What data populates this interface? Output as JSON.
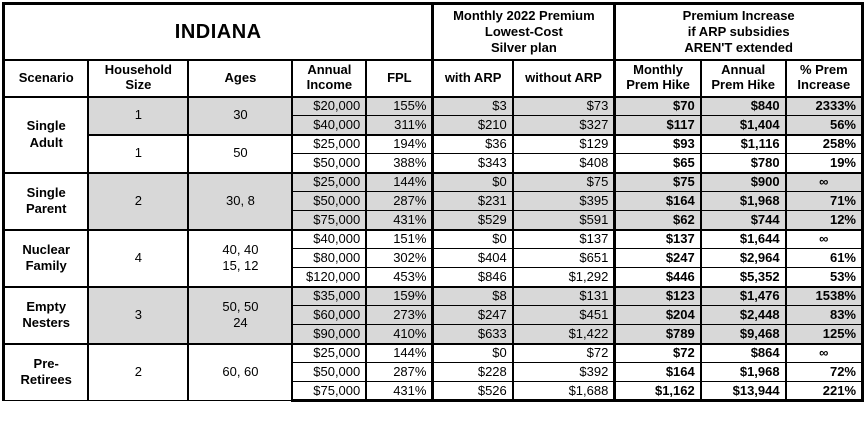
{
  "title": "INDIANA",
  "colors": {
    "shaded_row": "#d8d8d8",
    "grid": "#000000",
    "background": "#ffffff",
    "text": "#000000"
  },
  "header": {
    "premium_group": "Monthly 2022 Premium\nLowest-Cost\nSilver plan",
    "increase_group": "Premium Increase\nif ARP subsidies\nAREN'T extended",
    "columns": {
      "scenario": "Scenario",
      "household": "Household\nSize",
      "ages": "Ages",
      "income": "Annual\nIncome",
      "fpl": "FPL",
      "with_arp": "with ARP",
      "without_arp": "without ARP",
      "monthly_hike": "Monthly\nPrem Hike",
      "annual_hike": "Annual\nPrem Hike",
      "pct_increase": "% Prem\nIncrease"
    }
  },
  "chart_data": {
    "type": "table",
    "title": "INDIANA",
    "column_headers": [
      "Scenario",
      "Household Size",
      "Ages",
      "Annual Income",
      "FPL",
      "with ARP",
      "without ARP",
      "Monthly Prem Hike",
      "Annual Prem Hike",
      "% Prem Increase"
    ],
    "groups": [
      {
        "scenario": "Single\nAdult",
        "subgroups": [
          {
            "household": "1",
            "ages": "30",
            "shaded": true,
            "rows": [
              {
                "income": "$20,000",
                "fpl": "155%",
                "with_arp": "$3",
                "without_arp": "$73",
                "monthly_hike": "$70",
                "annual_hike": "$840",
                "pct_increase": "2333%"
              },
              {
                "income": "$40,000",
                "fpl": "311%",
                "with_arp": "$210",
                "without_arp": "$327",
                "monthly_hike": "$117",
                "annual_hike": "$1,404",
                "pct_increase": "56%"
              }
            ]
          },
          {
            "household": "1",
            "ages": "50",
            "shaded": false,
            "rows": [
              {
                "income": "$25,000",
                "fpl": "194%",
                "with_arp": "$36",
                "without_arp": "$129",
                "monthly_hike": "$93",
                "annual_hike": "$1,116",
                "pct_increase": "258%"
              },
              {
                "income": "$50,000",
                "fpl": "388%",
                "with_arp": "$343",
                "without_arp": "$408",
                "monthly_hike": "$65",
                "annual_hike": "$780",
                "pct_increase": "19%"
              }
            ]
          }
        ]
      },
      {
        "scenario": "Single\nParent",
        "subgroups": [
          {
            "household": "2",
            "ages": "30, 8",
            "shaded": true,
            "rows": [
              {
                "income": "$25,000",
                "fpl": "144%",
                "with_arp": "$0",
                "without_arp": "$75",
                "monthly_hike": "$75",
                "annual_hike": "$900",
                "pct_increase": "∞"
              },
              {
                "income": "$50,000",
                "fpl": "287%",
                "with_arp": "$231",
                "without_arp": "$395",
                "monthly_hike": "$164",
                "annual_hike": "$1,968",
                "pct_increase": "71%"
              },
              {
                "income": "$75,000",
                "fpl": "431%",
                "with_arp": "$529",
                "without_arp": "$591",
                "monthly_hike": "$62",
                "annual_hike": "$744",
                "pct_increase": "12%"
              }
            ]
          }
        ]
      },
      {
        "scenario": "Nuclear\nFamily",
        "subgroups": [
          {
            "household": "4",
            "ages": "40, 40\n15, 12",
            "shaded": false,
            "rows": [
              {
                "income": "$40,000",
                "fpl": "151%",
                "with_arp": "$0",
                "without_arp": "$137",
                "monthly_hike": "$137",
                "annual_hike": "$1,644",
                "pct_increase": "∞"
              },
              {
                "income": "$80,000",
                "fpl": "302%",
                "with_arp": "$404",
                "without_arp": "$651",
                "monthly_hike": "$247",
                "annual_hike": "$2,964",
                "pct_increase": "61%"
              },
              {
                "income": "$120,000",
                "fpl": "453%",
                "with_arp": "$846",
                "without_arp": "$1,292",
                "monthly_hike": "$446",
                "annual_hike": "$5,352",
                "pct_increase": "53%"
              }
            ]
          }
        ]
      },
      {
        "scenario": "Empty\nNesters",
        "subgroups": [
          {
            "household": "3",
            "ages": "50, 50\n24",
            "shaded": true,
            "rows": [
              {
                "income": "$35,000",
                "fpl": "159%",
                "with_arp": "$8",
                "without_arp": "$131",
                "monthly_hike": "$123",
                "annual_hike": "$1,476",
                "pct_increase": "1538%"
              },
              {
                "income": "$60,000",
                "fpl": "273%",
                "with_arp": "$247",
                "without_arp": "$451",
                "monthly_hike": "$204",
                "annual_hike": "$2,448",
                "pct_increase": "83%"
              },
              {
                "income": "$90,000",
                "fpl": "410%",
                "with_arp": "$633",
                "without_arp": "$1,422",
                "monthly_hike": "$789",
                "annual_hike": "$9,468",
                "pct_increase": "125%"
              }
            ]
          }
        ]
      },
      {
        "scenario": "Pre-\nRetirees",
        "subgroups": [
          {
            "household": "2",
            "ages": "60, 60",
            "shaded": false,
            "rows": [
              {
                "income": "$25,000",
                "fpl": "144%",
                "with_arp": "$0",
                "without_arp": "$72",
                "monthly_hike": "$72",
                "annual_hike": "$864",
                "pct_increase": "∞"
              },
              {
                "income": "$50,000",
                "fpl": "287%",
                "with_arp": "$228",
                "without_arp": "$392",
                "monthly_hike": "$164",
                "annual_hike": "$1,968",
                "pct_increase": "72%"
              },
              {
                "income": "$75,000",
                "fpl": "431%",
                "with_arp": "$526",
                "without_arp": "$1,688",
                "monthly_hike": "$1,162",
                "annual_hike": "$13,944",
                "pct_increase": "221%"
              }
            ]
          }
        ]
      }
    ]
  }
}
